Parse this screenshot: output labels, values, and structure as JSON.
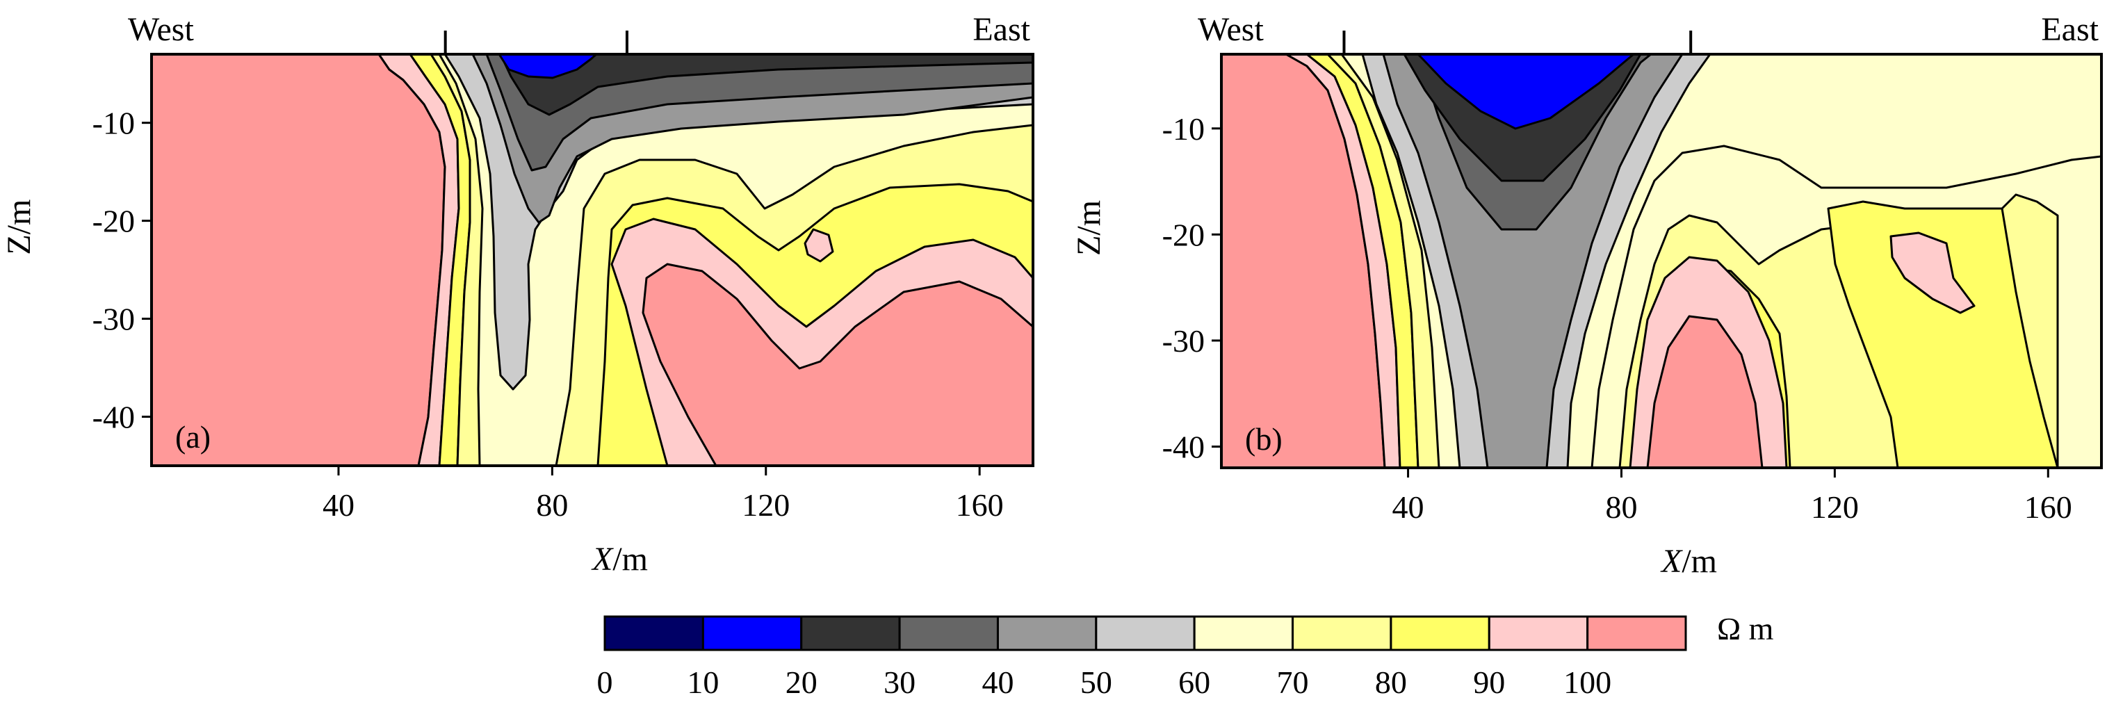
{
  "figure": {
    "unit_label": "Ω m"
  },
  "chart_data": [
    {
      "type": "contour",
      "panel_label": "(a)",
      "west_label": "West",
      "east_label": "East",
      "xlabel_italic": "X",
      "xlabel_unit": "/m",
      "ylabel": "Z/m",
      "xlim": [
        5,
        170
      ],
      "ylim": [
        -45,
        -3
      ],
      "xticks": [
        40,
        80,
        120,
        160
      ],
      "yticks": [
        -10,
        -20,
        -30,
        -40
      ],
      "surface_markers_x": [
        60,
        94
      ],
      "description_values": {
        "low_resistivity_zone_min_ohm_m": 10,
        "low_zone_center_x": 73,
        "high_resistivity_west_ohm_m": 100,
        "high_resistivity_east_ohm_m": 100
      }
    },
    {
      "type": "contour",
      "panel_label": "(b)",
      "west_label": "West",
      "east_label": "East",
      "xlabel_italic": "X",
      "xlabel_unit": "/m",
      "ylabel": "Z/m",
      "xlim": [
        5,
        170
      ],
      "ylim": [
        -42,
        -3
      ],
      "xticks": [
        40,
        80,
        120,
        160
      ],
      "yticks": [
        -10,
        -20,
        -30,
        -40
      ],
      "surface_markers_x": [
        28,
        93
      ],
      "description_values": {
        "low_resistivity_zone_min_ohm_m": 10,
        "low_zone_center_x": 60,
        "high_resistivity_west_ohm_m": 100,
        "high_resistivity_center_ohm_m": 100
      }
    }
  ],
  "colorbar": {
    "levels": [
      "0",
      "10",
      "20",
      "30",
      "40",
      "50",
      "60",
      "70",
      "80",
      "90",
      "100"
    ],
    "colors": [
      "#000066",
      "#0000ff",
      "#333333",
      "#666666",
      "#999999",
      "#cccccc",
      "#ffffcc",
      "#ffff99",
      "#ffff66",
      "#ffcccc",
      "#ff9999"
    ]
  }
}
